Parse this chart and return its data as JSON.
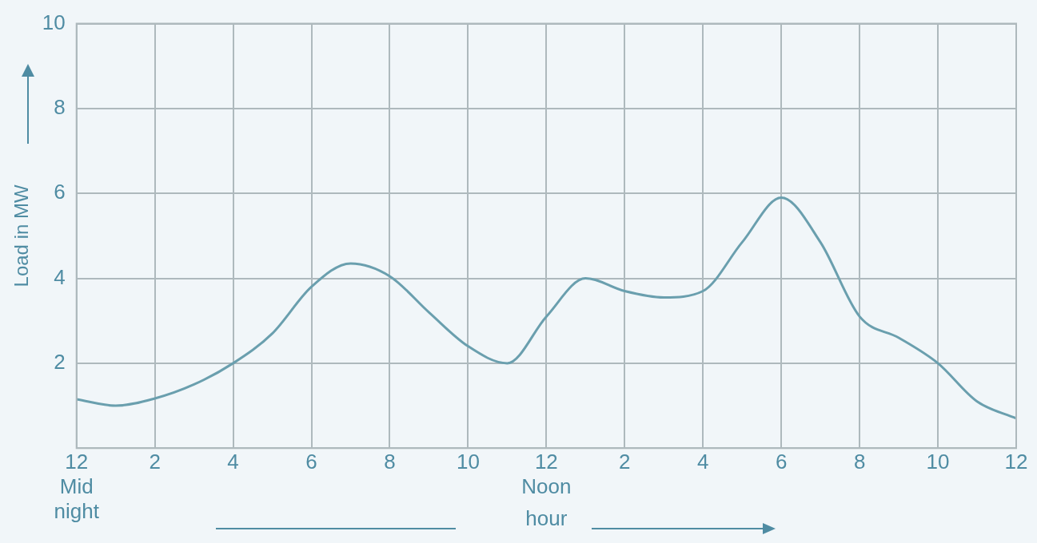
{
  "chart_data": {
    "type": "line",
    "xlabel": "hour",
    "ylabel": "Load in MW",
    "categories": [
      "12\nMid\nnight",
      null,
      "2",
      null,
      "4",
      null,
      "6",
      null,
      "8",
      null,
      "10",
      null,
      "12\nNoon",
      null,
      "2",
      null,
      "4",
      null,
      "6",
      null,
      "8",
      null,
      "10",
      null,
      "12"
    ],
    "series": [
      {
        "color": "#6a9fae",
        "values": [
          1.15,
          1.0,
          1.17,
          1.5,
          2.0,
          2.7,
          3.8,
          4.35,
          4.05,
          3.2,
          2.4,
          2.0,
          3.1,
          4.0,
          3.7,
          3.55,
          3.7,
          4.85,
          5.9,
          4.85,
          3.1,
          2.6,
          2.0,
          1.1,
          0.7
        ]
      }
    ],
    "ylim": [
      0,
      10
    ],
    "yticks": [
      {
        "value": 0,
        "label": null
      },
      2,
      4,
      6,
      8,
      10
    ],
    "grid": true,
    "legend": false,
    "marker": "none",
    "line_style": "solid"
  }
}
